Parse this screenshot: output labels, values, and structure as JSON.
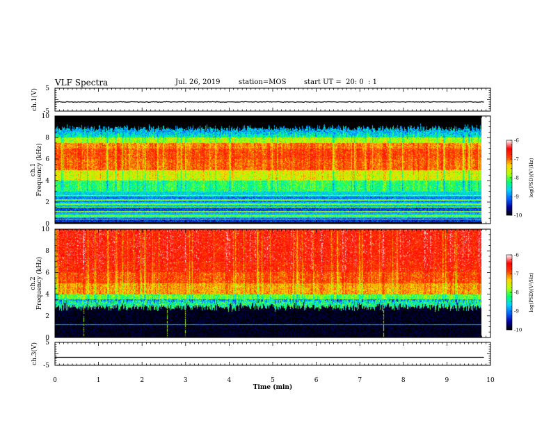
{
  "header": {
    "title": "VLF Spectra",
    "date": "Jul. 26, 2019",
    "station": "station=MOS",
    "start_ut": "start UT =  20: 0  : 1"
  },
  "x_axis": {
    "label": "Time (min)",
    "range": [
      0,
      10
    ],
    "ticks": [
      "0",
      "1",
      "2",
      "3",
      "4",
      "5",
      "6",
      "7",
      "8",
      "9",
      "10"
    ]
  },
  "panels": {
    "ch1_wave": {
      "ylabel": "ch.1(V)",
      "ticks": [
        "5",
        "-5"
      ],
      "ylim": [
        -5,
        5
      ]
    },
    "ch1_spec": {
      "ylabel": "ch.1\nFrequency (kHz)",
      "ticks": [
        "0",
        "2",
        "4",
        "6",
        "8",
        "10"
      ],
      "ylim": [
        0,
        10
      ]
    },
    "ch2_spec": {
      "ylabel": "ch.2\nFrequency (kHz)",
      "ticks": [
        "0",
        "2",
        "4",
        "6",
        "8",
        "10"
      ],
      "ylim": [
        0,
        10
      ]
    },
    "ch3_wave": {
      "ylabel": "ch.3(V)",
      "ticks": [
        "5",
        "-5"
      ],
      "ylim": [
        -5,
        5
      ]
    }
  },
  "colorbar": {
    "label": "log(PSD)(V²/Hz)",
    "ticks": [
      "-6",
      "-7",
      "-8",
      "-9",
      "-10"
    ],
    "range": [
      -10,
      -6
    ],
    "colors": [
      "#000000",
      "#0000a0",
      "#0064ff",
      "#00d2ff",
      "#00ff6e",
      "#b4ff00",
      "#ffd200",
      "#ff3c00",
      "#ff0000",
      "#ffffff"
    ]
  },
  "chart_data": [
    {
      "type": "line",
      "title": "VLF Spectra",
      "xlabel": "Time (min)",
      "ylabel": "ch.1(V)",
      "xlim": [
        0,
        9.85
      ],
      "ylim": [
        -5,
        5
      ],
      "series": [
        {
          "x": [
            0,
            9.85
          ],
          "y": [
            -1.0,
            -1.0
          ]
        }
      ]
    },
    {
      "type": "heatmap",
      "xlabel": "Time (min)",
      "ylabel": "ch.1 Frequency (kHz)",
      "xlim": [
        0,
        9.85
      ],
      "ylim": [
        0,
        10
      ],
      "zlabel": "log(PSD)(V²/Hz)",
      "zlim": [
        -10,
        -6
      ],
      "freq_bands_khz": [
        0,
        0.5,
        1.0,
        1.5,
        2.0,
        2.5,
        3.0,
        4.0,
        5.0,
        6.0,
        7.0,
        7.5,
        8.0,
        8.5,
        9.0,
        10.0
      ],
      "typical_log_psd": [
        -9.3,
        -8.6,
        -9.2,
        -8.7,
        -9.0,
        -8.6,
        -8.2,
        -7.6,
        -7.0,
        -6.9,
        -7.1,
        -7.8,
        -8.4,
        -9.3,
        -10.0
      ],
      "horizontal_lines_khz": [
        0.4,
        0.7,
        1.1,
        1.5,
        1.8,
        2.2,
        2.6
      ]
    },
    {
      "type": "heatmap",
      "xlabel": "Time (min)",
      "ylabel": "ch.2 Frequency (kHz)",
      "xlim": [
        0,
        9.85
      ],
      "ylim": [
        0,
        10
      ],
      "zlabel": "log(PSD)(V²/Hz)",
      "zlim": [
        -10,
        -6
      ],
      "freq_bands_khz": [
        0,
        1.0,
        2.0,
        3.0,
        3.5,
        4.0,
        5.0,
        6.0,
        7.0,
        8.0,
        9.0,
        10.0
      ],
      "typical_log_psd": [
        -9.8,
        -9.8,
        -9.7,
        -9.0,
        -8.0,
        -7.2,
        -6.9,
        -6.7,
        -6.6,
        -6.6,
        -6.6
      ],
      "horizontal_lines_khz": [
        1.2
      ]
    },
    {
      "type": "line",
      "xlabel": "Time (min)",
      "ylabel": "ch.3(V)",
      "xlim": [
        0,
        9.85
      ],
      "ylim": [
        -5,
        5
      ],
      "series": [
        {
          "x": [
            0,
            9.85
          ],
          "y": [
            -1.5,
            -1.5
          ]
        }
      ]
    }
  ]
}
